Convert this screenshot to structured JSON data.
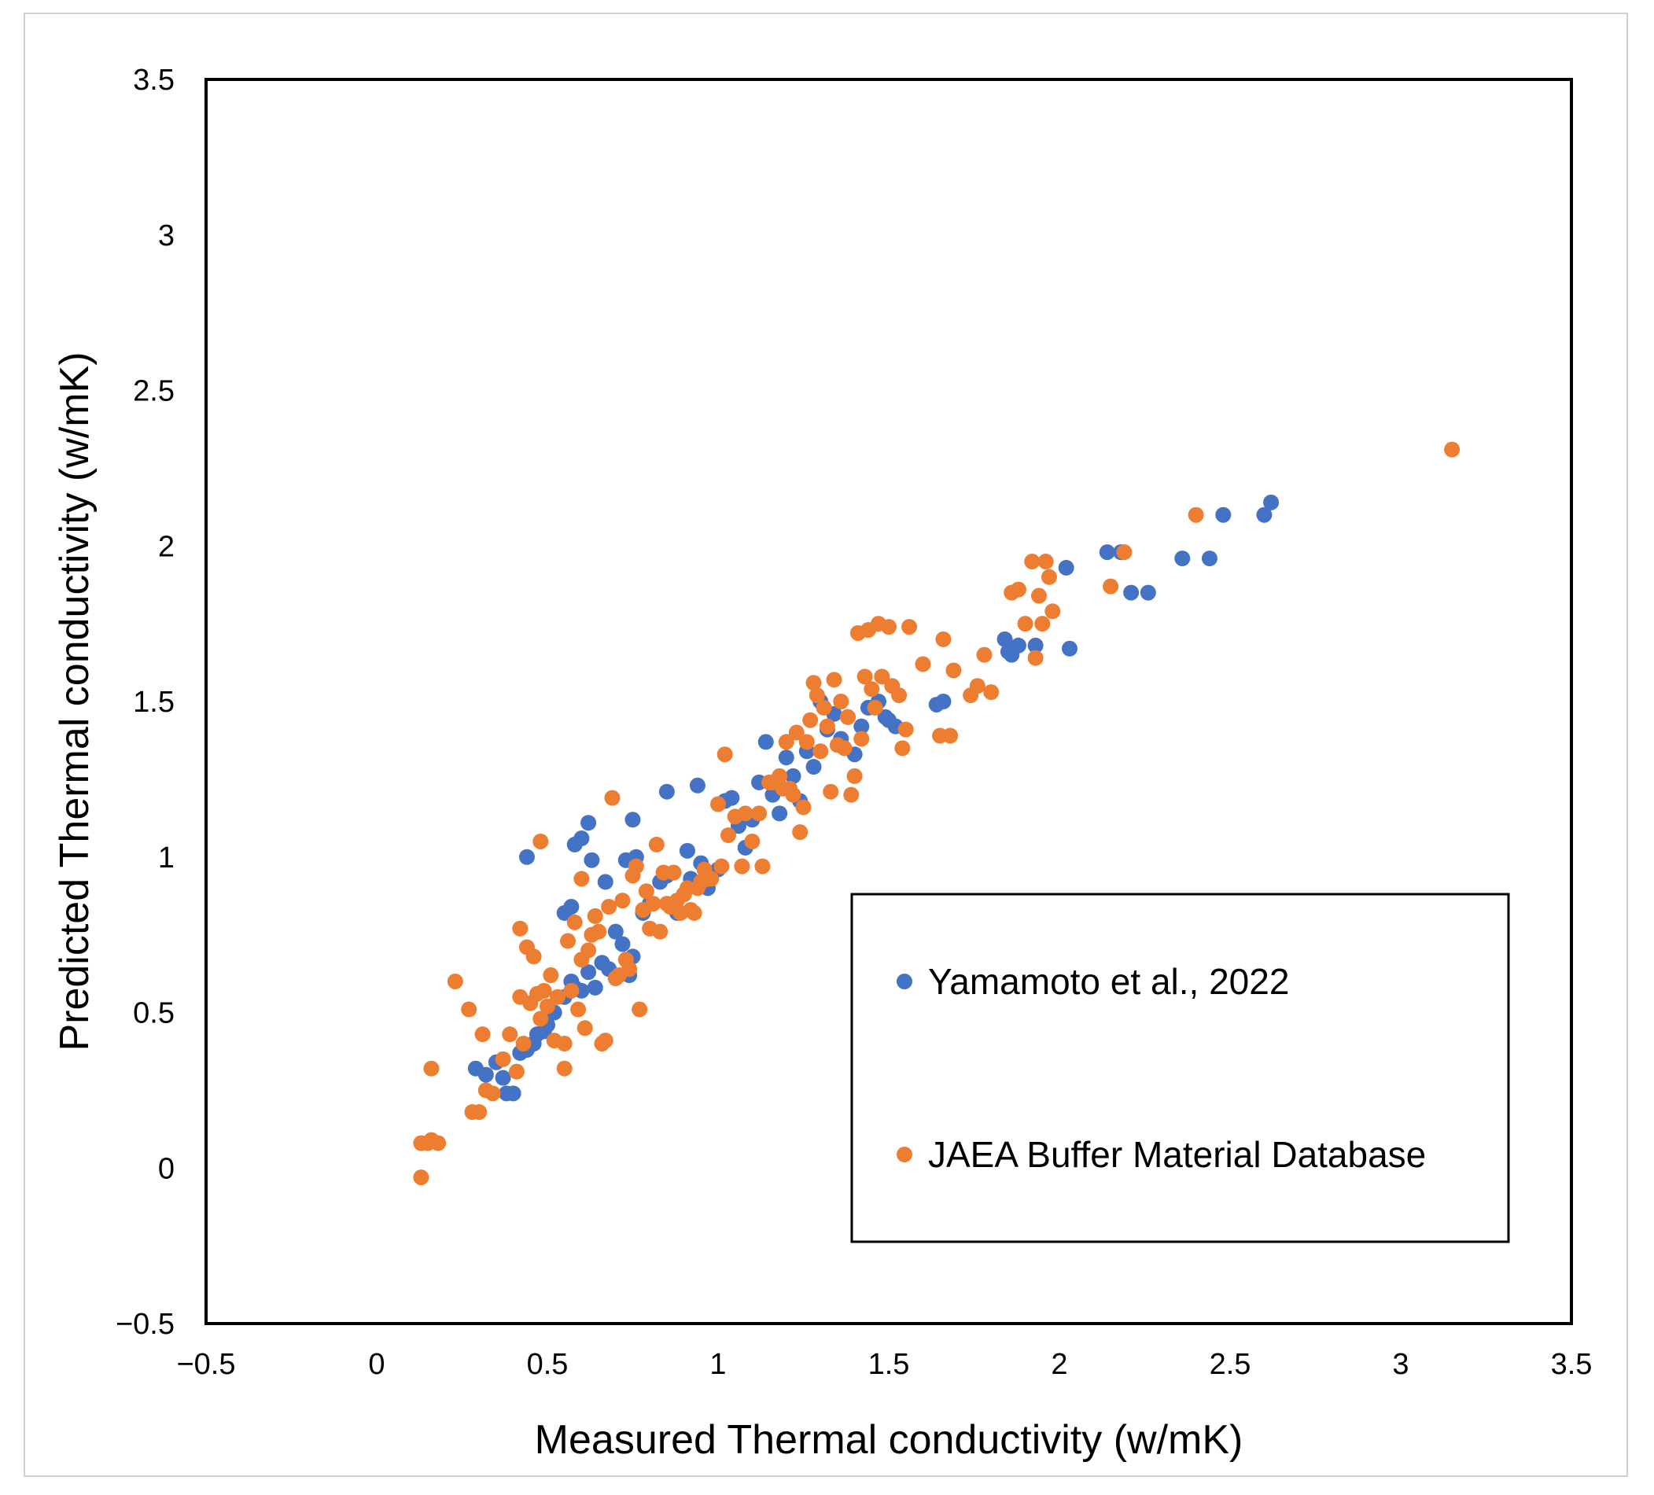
{
  "chart_data": {
    "type": "scatter",
    "title": "",
    "xlabel": "Measured Thermal conductivity (w/mK)",
    "ylabel": "Predicted Thermal conductivity (w/mK)",
    "xlim": [
      -0.5,
      3.5
    ],
    "ylim": [
      -0.5,
      3.5
    ],
    "xticks": [
      "−0.5",
      "0",
      "0.5",
      "1",
      "1.5",
      "2",
      "2.5",
      "3",
      "3.5"
    ],
    "yticks": [
      "−0.5",
      "0",
      "0.5",
      "1",
      "1.5",
      "2",
      "2.5",
      "3",
      "3.5"
    ],
    "grid": false,
    "legend_position": "lower-right",
    "series": [
      {
        "name": "Yamamoto et al., 2022",
        "color": "#4472C4",
        "points": [
          [
            0.29,
            0.32
          ],
          [
            0.32,
            0.3
          ],
          [
            0.35,
            0.34
          ],
          [
            0.37,
            0.29
          ],
          [
            0.38,
            0.24
          ],
          [
            0.4,
            0.24
          ],
          [
            0.42,
            0.37
          ],
          [
            0.44,
            0.38
          ],
          [
            0.46,
            0.4
          ],
          [
            0.47,
            0.43
          ],
          [
            0.49,
            0.44
          ],
          [
            0.5,
            0.46
          ],
          [
            0.52,
            0.5
          ],
          [
            0.55,
            0.55
          ],
          [
            0.57,
            0.6
          ],
          [
            0.58,
            0.58
          ],
          [
            0.6,
            0.57
          ],
          [
            0.62,
            0.63
          ],
          [
            0.64,
            0.58
          ],
          [
            0.66,
            0.66
          ],
          [
            0.68,
            0.64
          ],
          [
            0.7,
            0.76
          ],
          [
            0.72,
            0.72
          ],
          [
            0.74,
            0.62
          ],
          [
            0.75,
            0.68
          ],
          [
            0.44,
            1.0
          ],
          [
            0.55,
            0.82
          ],
          [
            0.57,
            0.84
          ],
          [
            0.58,
            1.04
          ],
          [
            0.6,
            1.06
          ],
          [
            0.62,
            1.11
          ],
          [
            0.63,
            0.99
          ],
          [
            0.67,
            0.92
          ],
          [
            0.73,
            0.99
          ],
          [
            0.75,
            1.12
          ],
          [
            0.76,
            1.0
          ],
          [
            0.78,
            0.82
          ],
          [
            0.8,
            0.85
          ],
          [
            0.83,
            0.92
          ],
          [
            0.85,
            0.94
          ],
          [
            0.85,
            1.21
          ],
          [
            0.88,
            0.82
          ],
          [
            0.9,
            0.88
          ],
          [
            0.91,
            1.02
          ],
          [
            0.92,
            0.93
          ],
          [
            0.94,
            1.23
          ],
          [
            0.95,
            0.98
          ],
          [
            0.97,
            0.9
          ],
          [
            1.0,
            0.96
          ],
          [
            1.02,
            1.18
          ],
          [
            1.04,
            1.19
          ],
          [
            1.06,
            1.1
          ],
          [
            1.08,
            1.03
          ],
          [
            1.1,
            1.12
          ],
          [
            1.12,
            1.24
          ],
          [
            1.14,
            1.37
          ],
          [
            1.16,
            1.2
          ],
          [
            1.18,
            1.14
          ],
          [
            1.2,
            1.32
          ],
          [
            1.22,
            1.26
          ],
          [
            1.24,
            1.18
          ],
          [
            1.26,
            1.34
          ],
          [
            1.28,
            1.29
          ],
          [
            1.3,
            1.5
          ],
          [
            1.32,
            1.41
          ],
          [
            1.34,
            1.46
          ],
          [
            1.36,
            1.38
          ],
          [
            1.38,
            1.45
          ],
          [
            1.4,
            1.33
          ],
          [
            1.42,
            1.42
          ],
          [
            1.44,
            1.48
          ],
          [
            1.47,
            1.5
          ],
          [
            1.49,
            1.45
          ],
          [
            1.5,
            1.44
          ],
          [
            1.52,
            1.42
          ],
          [
            1.64,
            1.49
          ],
          [
            1.66,
            1.5
          ],
          [
            1.84,
            1.7
          ],
          [
            1.85,
            1.66
          ],
          [
            1.86,
            1.65
          ],
          [
            1.88,
            1.68
          ],
          [
            1.93,
            1.68
          ],
          [
            2.02,
            1.93
          ],
          [
            2.03,
            1.67
          ],
          [
            2.14,
            1.98
          ],
          [
            2.18,
            1.98
          ],
          [
            2.21,
            1.85
          ],
          [
            2.26,
            1.85
          ],
          [
            2.36,
            1.96
          ],
          [
            2.44,
            1.96
          ],
          [
            2.48,
            2.1
          ],
          [
            2.6,
            2.1
          ],
          [
            2.62,
            2.14
          ]
        ]
      },
      {
        "name": "JAEA Buffer Material Database",
        "color": "#ED7D31",
        "points": [
          [
            0.13,
            -0.03
          ],
          [
            0.13,
            0.08
          ],
          [
            0.15,
            0.08
          ],
          [
            0.16,
            0.32
          ],
          [
            0.16,
            0.09
          ],
          [
            0.18,
            0.08
          ],
          [
            0.23,
            0.6
          ],
          [
            0.27,
            0.51
          ],
          [
            0.28,
            0.18
          ],
          [
            0.3,
            0.18
          ],
          [
            0.31,
            0.43
          ],
          [
            0.32,
            0.25
          ],
          [
            0.34,
            0.24
          ],
          [
            0.37,
            0.35
          ],
          [
            0.39,
            0.43
          ],
          [
            0.41,
            0.31
          ],
          [
            0.42,
            0.55
          ],
          [
            0.42,
            0.77
          ],
          [
            0.43,
            0.4
          ],
          [
            0.44,
            0.71
          ],
          [
            0.45,
            0.53
          ],
          [
            0.46,
            0.68
          ],
          [
            0.47,
            0.56
          ],
          [
            0.48,
            0.48
          ],
          [
            0.48,
            1.05
          ],
          [
            0.49,
            0.57
          ],
          [
            0.5,
            0.52
          ],
          [
            0.51,
            0.62
          ],
          [
            0.52,
            0.41
          ],
          [
            0.53,
            0.55
          ],
          [
            0.55,
            0.4
          ],
          [
            0.55,
            0.32
          ],
          [
            0.56,
            0.73
          ],
          [
            0.57,
            0.57
          ],
          [
            0.58,
            0.79
          ],
          [
            0.59,
            0.51
          ],
          [
            0.6,
            0.93
          ],
          [
            0.6,
            0.67
          ],
          [
            0.61,
            0.45
          ],
          [
            0.62,
            0.7
          ],
          [
            0.63,
            0.75
          ],
          [
            0.64,
            0.81
          ],
          [
            0.65,
            0.76
          ],
          [
            0.66,
            0.4
          ],
          [
            0.67,
            0.41
          ],
          [
            0.68,
            0.84
          ],
          [
            0.69,
            1.19
          ],
          [
            0.7,
            0.61
          ],
          [
            0.71,
            0.62
          ],
          [
            0.72,
            0.86
          ],
          [
            0.73,
            0.67
          ],
          [
            0.74,
            0.64
          ],
          [
            0.75,
            0.94
          ],
          [
            0.76,
            0.97
          ],
          [
            0.77,
            0.51
          ],
          [
            0.78,
            0.83
          ],
          [
            0.79,
            0.89
          ],
          [
            0.8,
            0.77
          ],
          [
            0.81,
            0.85
          ],
          [
            0.82,
            1.04
          ],
          [
            0.83,
            0.76
          ],
          [
            0.84,
            0.95
          ],
          [
            0.85,
            0.85
          ],
          [
            0.86,
            0.84
          ],
          [
            0.87,
            0.95
          ],
          [
            0.88,
            0.86
          ],
          [
            0.89,
            0.82
          ],
          [
            0.9,
            0.88
          ],
          [
            0.91,
            0.9
          ],
          [
            0.92,
            0.83
          ],
          [
            0.93,
            0.82
          ],
          [
            0.94,
            0.9
          ],
          [
            0.95,
            0.92
          ],
          [
            0.96,
            0.96
          ],
          [
            0.97,
            0.93
          ],
          [
            0.98,
            0.93
          ],
          [
            1.0,
            1.17
          ],
          [
            1.01,
            0.97
          ],
          [
            1.02,
            1.33
          ],
          [
            1.03,
            1.07
          ],
          [
            1.05,
            1.13
          ],
          [
            1.07,
            0.97
          ],
          [
            1.08,
            1.14
          ],
          [
            1.1,
            1.05
          ],
          [
            1.12,
            1.14
          ],
          [
            1.13,
            0.97
          ],
          [
            1.15,
            1.24
          ],
          [
            1.16,
            1.24
          ],
          [
            1.18,
            1.26
          ],
          [
            1.19,
            1.22
          ],
          [
            1.2,
            1.37
          ],
          [
            1.21,
            1.22
          ],
          [
            1.22,
            1.2
          ],
          [
            1.23,
            1.4
          ],
          [
            1.24,
            1.08
          ],
          [
            1.25,
            1.16
          ],
          [
            1.26,
            1.37
          ],
          [
            1.27,
            1.44
          ],
          [
            1.28,
            1.56
          ],
          [
            1.29,
            1.52
          ],
          [
            1.3,
            1.34
          ],
          [
            1.31,
            1.48
          ],
          [
            1.32,
            1.42
          ],
          [
            1.33,
            1.21
          ],
          [
            1.34,
            1.57
          ],
          [
            1.35,
            1.36
          ],
          [
            1.36,
            1.5
          ],
          [
            1.37,
            1.35
          ],
          [
            1.38,
            1.45
          ],
          [
            1.39,
            1.2
          ],
          [
            1.4,
            1.26
          ],
          [
            1.41,
            1.72
          ],
          [
            1.42,
            1.38
          ],
          [
            1.43,
            1.58
          ],
          [
            1.44,
            1.73
          ],
          [
            1.45,
            1.54
          ],
          [
            1.46,
            1.48
          ],
          [
            1.47,
            1.75
          ],
          [
            1.48,
            1.58
          ],
          [
            1.5,
            1.74
          ],
          [
            1.51,
            1.55
          ],
          [
            1.53,
            1.52
          ],
          [
            1.54,
            1.35
          ],
          [
            1.55,
            1.41
          ],
          [
            1.56,
            1.74
          ],
          [
            1.6,
            1.62
          ],
          [
            1.65,
            1.39
          ],
          [
            1.66,
            1.7
          ],
          [
            1.68,
            1.39
          ],
          [
            1.69,
            1.6
          ],
          [
            1.74,
            1.52
          ],
          [
            1.76,
            1.55
          ],
          [
            1.78,
            1.65
          ],
          [
            1.8,
            1.53
          ],
          [
            1.86,
            1.85
          ],
          [
            1.88,
            1.86
          ],
          [
            1.9,
            1.75
          ],
          [
            1.92,
            1.95
          ],
          [
            1.93,
            1.64
          ],
          [
            1.94,
            1.84
          ],
          [
            1.95,
            1.75
          ],
          [
            1.96,
            1.95
          ],
          [
            1.97,
            1.9
          ],
          [
            1.98,
            1.79
          ],
          [
            2.15,
            1.87
          ],
          [
            2.19,
            1.98
          ],
          [
            2.4,
            2.1
          ],
          [
            3.15,
            2.31
          ]
        ]
      }
    ]
  }
}
